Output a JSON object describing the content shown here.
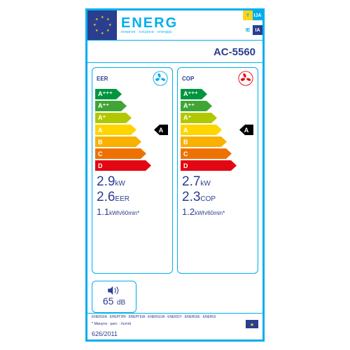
{
  "header": {
    "title": "ENERG",
    "subtitle": "енергия · ενέργεια · energija",
    "codes": [
      "Y",
      "IJA",
      "IE",
      "IA"
    ]
  },
  "model": "AC-5560",
  "classes": [
    "A⁺⁺⁺",
    "A⁺⁺",
    "A⁺",
    "A",
    "B",
    "C",
    "D"
  ],
  "class_colors": [
    "#009640",
    "#3fa535",
    "#b1c800",
    "#ffd500",
    "#f9b000",
    "#ee7203",
    "#e30613"
  ],
  "class_widths": [
    34,
    41,
    48,
    55,
    62,
    69,
    76
  ],
  "marker_index": 3,
  "marker_label": "A",
  "cooling": {
    "mode": "EER",
    "icon_color": "#00aeef",
    "kw": "2.9",
    "kw_unit": "kW",
    "ratio": "2.6",
    "ratio_unit": "EER",
    "energy": "1.1",
    "energy_unit": "kWh/60min*"
  },
  "heating": {
    "mode": "COP",
    "icon_color": "#e30613",
    "kw": "2.7",
    "kw_unit": "kW",
    "ratio": "2.3",
    "ratio_unit": "COP",
    "energy": "1.2",
    "energy_unit": "kWh/60min*"
  },
  "sound": {
    "value": "65",
    "unit": "dB"
  },
  "footer_multilang": "ENERGIA · ЕНЕРГИЯ · ΕΝΕΡΓΕΙΑ · ENERGIJA · ENERGY · ENERGIE · ENERGI",
  "footer_note": "* Минути · perc · Λεπτά",
  "regulation": "626/2011"
}
